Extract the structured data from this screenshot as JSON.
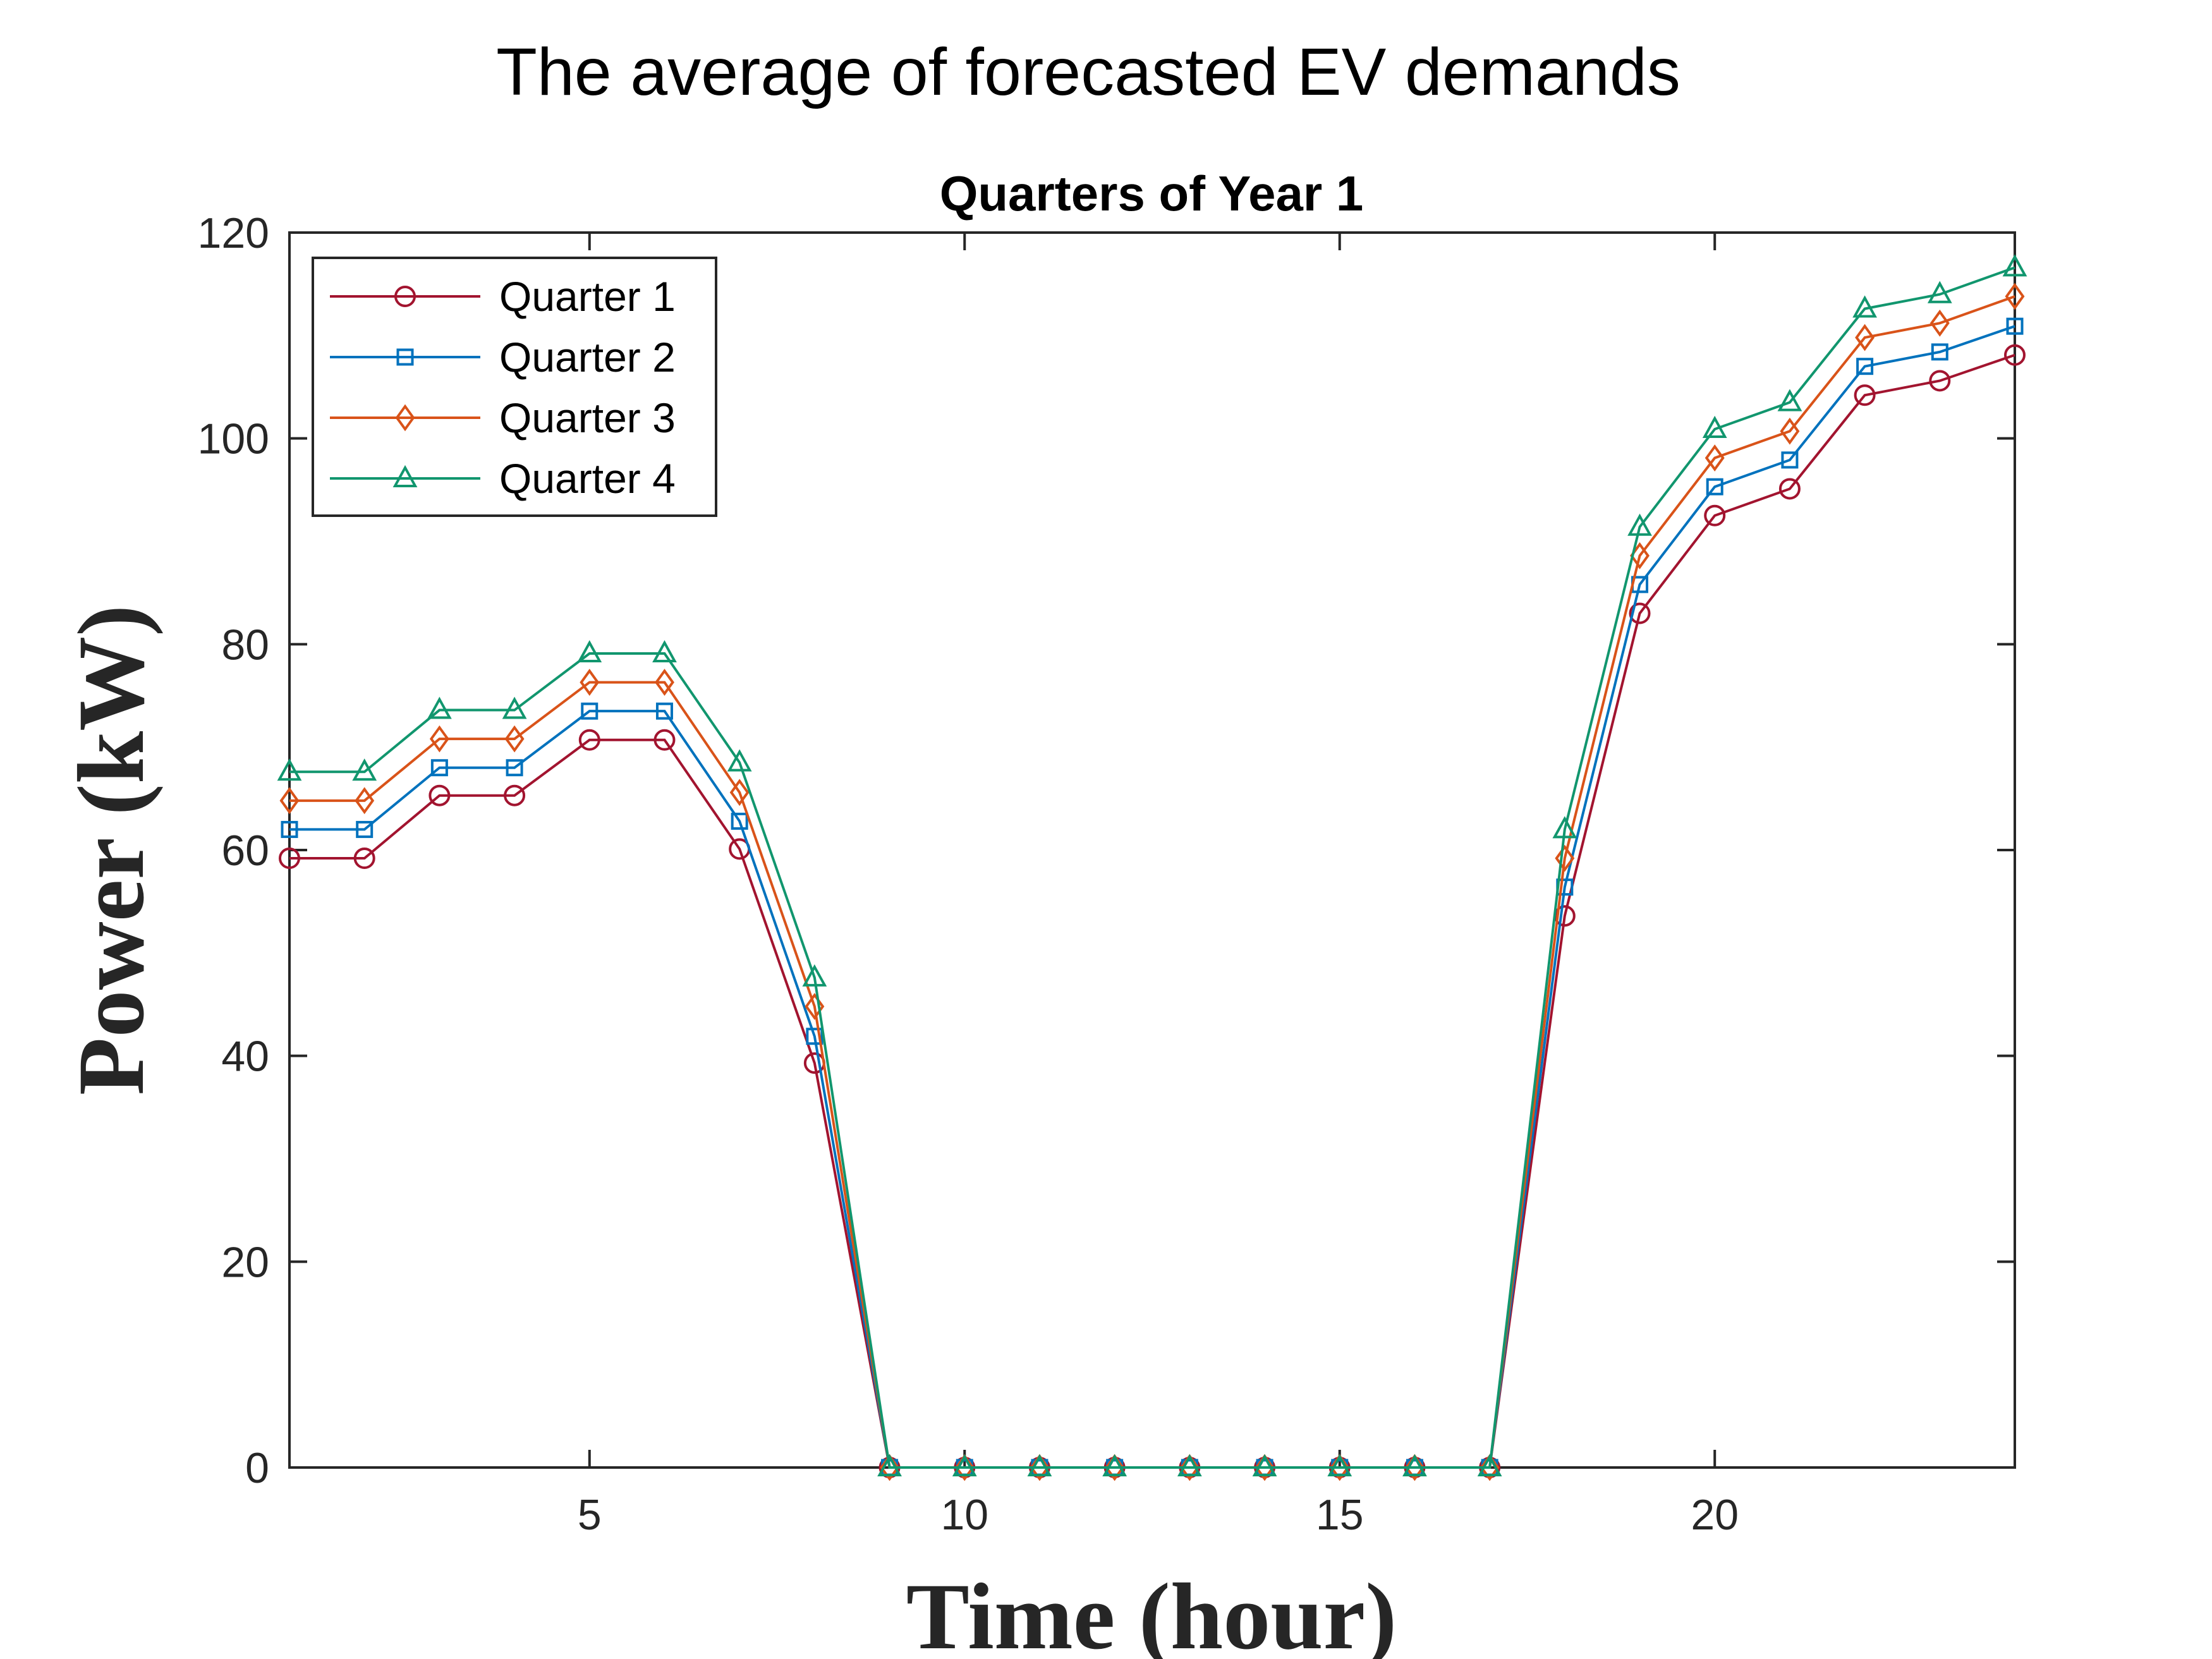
{
  "figure": {
    "title": "The average of forecasted EV demands"
  },
  "chart_data": {
    "type": "line",
    "title": "Quarters of Year 1",
    "xlabel": "Time (hour)",
    "ylabel": "Power (kW)",
    "xlim": [
      1,
      24
    ],
    "ylim": [
      0,
      120
    ],
    "xticks": [
      5,
      10,
      15,
      20
    ],
    "yticks": [
      0,
      20,
      40,
      60,
      80,
      100,
      120
    ],
    "grid": false,
    "legend_position": "top-left",
    "x": [
      1,
      2,
      3,
      4,
      5,
      6,
      7,
      8,
      9,
      10,
      11,
      12,
      13,
      14,
      15,
      16,
      17,
      18,
      19,
      20,
      21,
      22,
      23,
      24
    ],
    "series": [
      {
        "name": "Quarter 1",
        "color": "#A2142F",
        "marker": "circle",
        "values": [
          59.2,
          59.2,
          65.3,
          65.3,
          70.7,
          70.7,
          60.1,
          39.3,
          0,
          0,
          0,
          0,
          0,
          0,
          0,
          0,
          0,
          53.6,
          83.0,
          92.5,
          95.1,
          104.2,
          105.6,
          108.1
        ]
      },
      {
        "name": "Quarter 2",
        "color": "#0072BD",
        "marker": "square",
        "values": [
          62.0,
          62.0,
          68.0,
          68.0,
          73.5,
          73.5,
          62.8,
          41.9,
          0,
          0,
          0,
          0,
          0,
          0,
          0,
          0,
          0,
          56.4,
          85.8,
          95.3,
          97.9,
          107.0,
          108.4,
          110.9
        ]
      },
      {
        "name": "Quarter 3",
        "color": "#D95319",
        "marker": "diamond",
        "values": [
          64.8,
          64.8,
          70.8,
          70.8,
          76.3,
          76.3,
          65.6,
          44.8,
          0,
          0,
          0,
          0,
          0,
          0,
          0,
          0,
          0,
          59.2,
          88.6,
          98.1,
          100.7,
          109.8,
          111.2,
          113.8
        ]
      },
      {
        "name": "Quarter 4",
        "color": "#11966E",
        "marker": "triangle",
        "values": [
          67.6,
          67.6,
          73.6,
          73.6,
          79.1,
          79.1,
          68.5,
          47.6,
          0,
          0,
          0,
          0,
          0,
          0,
          0,
          0,
          0,
          62.0,
          91.4,
          100.9,
          103.5,
          112.6,
          114.0,
          116.6
        ]
      }
    ]
  }
}
